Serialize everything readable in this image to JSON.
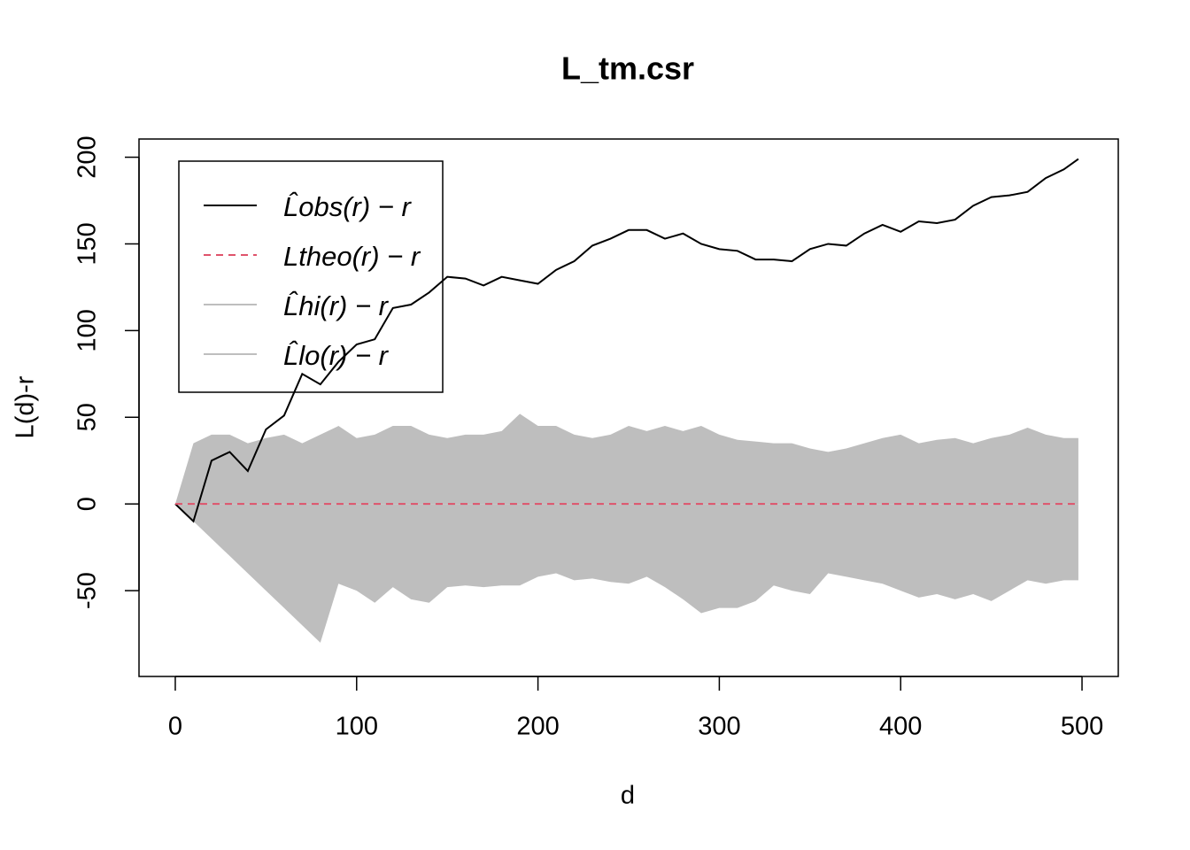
{
  "chart_data": {
    "type": "line",
    "title": "L_tm.csr",
    "x_label": "d",
    "y_label": "L(d)-r",
    "x": [
      0,
      10,
      20,
      30,
      40,
      50,
      60,
      70,
      80,
      90,
      100,
      110,
      120,
      130,
      140,
      150,
      160,
      170,
      180,
      190,
      200,
      210,
      220,
      230,
      240,
      250,
      260,
      270,
      280,
      290,
      300,
      310,
      320,
      330,
      340,
      350,
      360,
      370,
      380,
      390,
      400,
      410,
      420,
      430,
      440,
      450,
      460,
      470,
      480,
      490,
      498
    ],
    "series": [
      {
        "name": "L̂obs(r) − r",
        "color": "#000000",
        "style": "solid",
        "values": [
          0,
          -10,
          25,
          30,
          19,
          43,
          51,
          75,
          69,
          82,
          92,
          95,
          113,
          115,
          122,
          131,
          130,
          126,
          131,
          129,
          127,
          135,
          140,
          149,
          153,
          158,
          158,
          153,
          156,
          150,
          147,
          146,
          141,
          141,
          140,
          147,
          150,
          149,
          156,
          161,
          157,
          163,
          162,
          164,
          172,
          177,
          178,
          180,
          188,
          193,
          199
        ]
      },
      {
        "name": "Ltheo(r) − r",
        "color": "#df536b",
        "style": "dashed",
        "values": [
          0,
          0,
          0,
          0,
          0,
          0,
          0,
          0,
          0,
          0,
          0,
          0,
          0,
          0,
          0,
          0,
          0,
          0,
          0,
          0,
          0,
          0,
          0,
          0,
          0,
          0,
          0,
          0,
          0,
          0,
          0,
          0,
          0,
          0,
          0,
          0,
          0,
          0,
          0,
          0,
          0,
          0,
          0,
          0,
          0,
          0,
          0,
          0,
          0,
          0,
          0
        ]
      },
      {
        "name": "L̂hi(r) − r",
        "color": "#bebebe",
        "style": "area",
        "values": [
          0,
          35,
          40,
          40,
          35,
          38,
          40,
          35,
          40,
          45,
          38,
          40,
          45,
          45,
          40,
          38,
          40,
          40,
          42,
          52,
          45,
          45,
          40,
          38,
          40,
          45,
          42,
          45,
          42,
          45,
          40,
          37,
          36,
          35,
          35,
          32,
          30,
          32,
          35,
          38,
          40,
          35,
          37,
          38,
          35,
          38,
          40,
          44,
          40,
          38,
          38
        ]
      },
      {
        "name": "L̂lo(r) − r",
        "color": "#bebebe",
        "style": "area",
        "values": [
          0,
          -10,
          -20,
          -30,
          -40,
          -50,
          -60,
          -70,
          -80,
          -46,
          -50,
          -57,
          -48,
          -55,
          -57,
          -48,
          -47,
          -48,
          -47,
          -47,
          -42,
          -40,
          -44,
          -43,
          -45,
          -46,
          -42,
          -48,
          -55,
          -63,
          -60,
          -60,
          -56,
          -47,
          -50,
          -52,
          -40,
          -42,
          -44,
          -46,
          -50,
          -54,
          -52,
          -55,
          -52,
          -56,
          -50,
          -44,
          -46,
          -44,
          -44
        ]
      }
    ],
    "xlim": [
      -20,
      520
    ],
    "ylim": [
      -99.5,
      210.5
    ],
    "xticks": [
      0,
      100,
      200,
      300,
      400,
      500
    ],
    "yticks": [
      -50,
      0,
      50,
      100,
      150,
      200
    ],
    "grid": false,
    "legend": "topleft"
  }
}
